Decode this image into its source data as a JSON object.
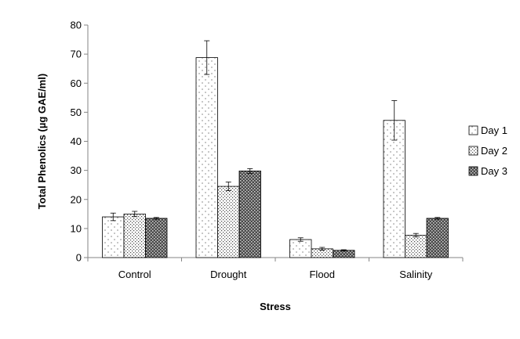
{
  "chart_data": {
    "type": "bar",
    "title": "",
    "xlabel": "Stress",
    "ylabel": "Total Phenolics (µg GAE/ml)",
    "ylim": [
      0,
      80
    ],
    "yticks": [
      0,
      10,
      20,
      30,
      40,
      50,
      60,
      70,
      80
    ],
    "categories": [
      "Control",
      "Drought",
      "Flood",
      "Salinity"
    ],
    "series": [
      {
        "name": "Day 1",
        "values": [
          14.0,
          68.8,
          6.2,
          47.2
        ],
        "errors": [
          1.3,
          5.8,
          0.6,
          6.8
        ]
      },
      {
        "name": "Day 2",
        "values": [
          15.0,
          24.5,
          3.0,
          7.7
        ],
        "errors": [
          0.9,
          1.5,
          0.5,
          0.6
        ]
      },
      {
        "name": "Day 3",
        "values": [
          13.5,
          29.8,
          2.5,
          13.5
        ],
        "errors": [
          0.3,
          0.8,
          0.2,
          0.3
        ]
      }
    ],
    "legend_position": "right",
    "grid": false
  }
}
